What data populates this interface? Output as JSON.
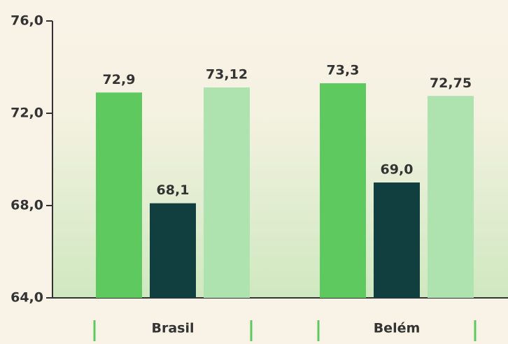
{
  "chart_data": {
    "type": "bar",
    "categories": [
      "Brasil",
      "Belém"
    ],
    "series": [
      {
        "color": "#5ec95e",
        "values": [
          72.9,
          73.3
        ],
        "value_labels": [
          "72,9",
          "73,3"
        ]
      },
      {
        "color": "#113f3f",
        "values": [
          68.1,
          69.0
        ],
        "value_labels": [
          "68,1",
          "69,0"
        ]
      },
      {
        "color": "#aee3b0",
        "values": [
          73.12,
          72.75
        ],
        "value_labels": [
          "73,12",
          "72,75"
        ]
      }
    ],
    "ylim": [
      64,
      76
    ],
    "yticks": [
      {
        "value": 64,
        "label": "64,0"
      },
      {
        "value": 68,
        "label": "68,0"
      },
      {
        "value": 72,
        "label": "72,0"
      },
      {
        "value": 76,
        "label": "76,0"
      }
    ]
  }
}
